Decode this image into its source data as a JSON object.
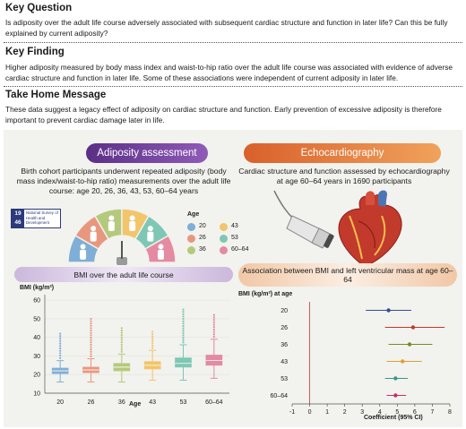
{
  "key_question": {
    "title": "Key Question",
    "text": "Is adiposity over the adult life course adversely associated with subsequent cardiac structure and function in later life? Can this be fully explained by current adiposity?"
  },
  "key_finding": {
    "title": "Key Finding",
    "text": "Higher adiposity measured by body mass index and waist-to-hip ratio over the adult life course was associated with evidence of adverse cardiac structure and function in later life. Some of these associations were independent of current adiposity in later life."
  },
  "take_home": {
    "title": "Take Home Message",
    "text": "These data suggest a legacy effect of adiposity on cardiac structure and function. Early prevention of excessive adiposity is therefore important to prevent cardiac damage later in life."
  },
  "adiposity": {
    "title": "Adiposity assessment",
    "text": "Birth cohort participants underwent repeated adiposity (body mass index/waist-to-hip ratio) measurements over the adult life course: age 20, 26, 36, 43, 53, 60–64 years",
    "logo_top": "19",
    "logo_bottom": "46",
    "logo_text": "National Survey of Health and Development",
    "legend_title": "Age",
    "legend": [
      {
        "label": "20",
        "color": "#7faed6"
      },
      {
        "label": "43",
        "color": "#f2c56a"
      },
      {
        "label": "26",
        "color": "#e8977f"
      },
      {
        "label": "53",
        "color": "#7ec7b4"
      },
      {
        "label": "36",
        "color": "#b5c97c"
      },
      {
        "label": "60–64",
        "color": "#e48aa3"
      }
    ]
  },
  "echo": {
    "title": "Echocardiography",
    "text": "Cardiac structure and function assessed by echocardiography at age 60–64 years in 1690 participants"
  },
  "boxplot": {
    "title": "BMI over the adult life course",
    "ylabel": "BMI (kg/m²)",
    "xlabel": "Age"
  },
  "forest": {
    "title": "Association between BMI and left ventricular mass at age 60–64",
    "ylabel": "BMI (kg/m²) at age",
    "xlabel": "Coefficient (95% CI)"
  },
  "chart_data": [
    {
      "type": "box",
      "title": "BMI over the adult life course",
      "xlabel": "Age",
      "ylabel": "BMI (kg/m²)",
      "categories": [
        "20",
        "26",
        "36",
        "43",
        "53",
        "60–64"
      ],
      "colors": [
        "#7faed6",
        "#e8977f",
        "#b5c97c",
        "#f2c56a",
        "#7ec7b4",
        "#e48aa3"
      ],
      "boxes": [
        {
          "whisker_low": 16,
          "q1": 20.5,
          "median": 22,
          "q3": 23.5,
          "whisker_high": 27.5,
          "outlier_max": 42
        },
        {
          "whisker_low": 16,
          "q1": 21,
          "median": 22.5,
          "q3": 24,
          "whisker_high": 28.5,
          "outlier_max": 50
        },
        {
          "whisker_low": 16,
          "q1": 22,
          "median": 24,
          "q3": 26,
          "whisker_high": 31,
          "outlier_max": 45
        },
        {
          "whisker_low": 17,
          "q1": 23,
          "median": 25,
          "q3": 27,
          "whisker_high": 33,
          "outlier_max": 43
        },
        {
          "whisker_low": 17,
          "q1": 24,
          "median": 26,
          "q3": 29,
          "whisker_high": 36,
          "outlier_max": 55
        },
        {
          "whisker_low": 18,
          "q1": 25,
          "median": 27.5,
          "q3": 30.5,
          "whisker_high": 39,
          "outlier_max": 52
        }
      ],
      "yticks": [
        10,
        20,
        30,
        40,
        50,
        60
      ],
      "ylim": [
        10,
        62
      ]
    },
    {
      "type": "forest",
      "title": "Association between BMI and left ventricular mass at age 60–64",
      "xlabel": "Coefficient (95% CI)",
      "ylabel": "BMI (kg/m²) at age",
      "categories": [
        "20",
        "26",
        "36",
        "43",
        "53",
        "60–64"
      ],
      "colors": [
        "#2f4f9a",
        "#c0392b",
        "#7a8a2a",
        "#e0a030",
        "#2f9a8a",
        "#c0306a"
      ],
      "estimates": [
        4.5,
        5.9,
        5.7,
        5.3,
        4.9,
        4.9
      ],
      "ci_low": [
        3.2,
        4.3,
        4.5,
        4.4,
        4.3,
        4.4
      ],
      "ci_high": [
        5.8,
        7.7,
        7.0,
        6.4,
        5.6,
        5.5
      ],
      "xticks": [
        -1,
        0,
        1,
        2,
        3,
        4,
        5,
        6,
        7,
        8
      ],
      "xlim": [
        -1,
        8
      ],
      "reference_line": 0
    }
  ]
}
